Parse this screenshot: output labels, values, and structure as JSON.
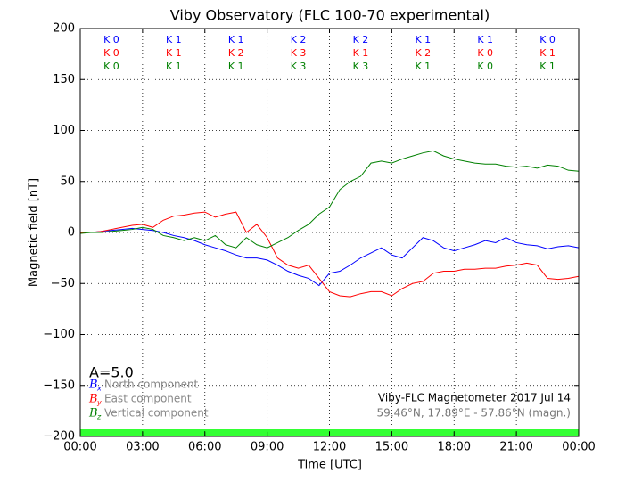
{
  "chart_data": {
    "type": "line",
    "title": "Viby Observatory (FLC 100-70 experimental)",
    "x_label": "Time [UTC]",
    "y_label": "Magnetic field [nT]",
    "x": [
      0,
      0.5,
      1,
      1.5,
      2,
      2.5,
      3,
      3.5,
      4,
      4.5,
      5,
      5.5,
      6,
      6.5,
      7,
      7.5,
      8,
      8.5,
      9,
      9.5,
      10,
      10.5,
      11,
      11.5,
      12,
      12.5,
      13,
      13.5,
      14,
      14.5,
      15,
      15.5,
      16,
      16.5,
      17,
      17.5,
      18,
      18.5,
      19,
      19.5,
      20,
      20.5,
      21,
      21.5,
      22,
      22.5,
      23,
      23.5,
      24
    ],
    "series": [
      {
        "name": "North component",
        "symbol": "B",
        "subscript": "x",
        "color": "#0000ff",
        "values": [
          0,
          0,
          1,
          2,
          3,
          4,
          3,
          2,
          0,
          -3,
          -5,
          -8,
          -12,
          -15,
          -18,
          -22,
          -25,
          -25,
          -27,
          -32,
          -38,
          -42,
          -45,
          -52,
          -40,
          -38,
          -32,
          -25,
          -20,
          -15,
          -22,
          -25,
          -15,
          -5,
          -8,
          -15,
          -18,
          -15,
          -12,
          -8,
          -10,
          -5,
          -10,
          -12,
          -13,
          -16,
          -14,
          -13,
          -15
        ]
      },
      {
        "name": "East component",
        "symbol": "B",
        "subscript": "y",
        "color": "#ff0000",
        "values": [
          0,
          0,
          1,
          3,
          5,
          7,
          8,
          5,
          12,
          16,
          17,
          19,
          20,
          15,
          18,
          20,
          0,
          8,
          -5,
          -25,
          -32,
          -35,
          -32,
          -45,
          -58,
          -62,
          -63,
          -60,
          -58,
          -58,
          -62,
          -55,
          -50,
          -48,
          -40,
          -38,
          -38,
          -36,
          -36,
          -35,
          -35,
          -33,
          -32,
          -30,
          -32,
          -45,
          -46,
          -45,
          -43
        ]
      },
      {
        "name": "Vertical component",
        "symbol": "B",
        "subscript": "z",
        "color": "#008000",
        "values": [
          -1,
          0,
          0,
          1,
          2,
          3,
          5,
          3,
          -3,
          -5,
          -8,
          -5,
          -8,
          -3,
          -12,
          -15,
          -5,
          -12,
          -15,
          -10,
          -5,
          2,
          8,
          18,
          25,
          42,
          50,
          55,
          68,
          70,
          68,
          72,
          75,
          78,
          80,
          75,
          72,
          70,
          68,
          67,
          67,
          65,
          64,
          65,
          63,
          66,
          65,
          61,
          60
        ]
      }
    ],
    "xlim": [
      0,
      24
    ],
    "xticks": [
      {
        "value": 0,
        "label": "00:00"
      },
      {
        "value": 3,
        "label": "03:00"
      },
      {
        "value": 6,
        "label": "06:00"
      },
      {
        "value": 9,
        "label": "09:00"
      },
      {
        "value": 12,
        "label": "12:00"
      },
      {
        "value": 15,
        "label": "15:00"
      },
      {
        "value": 18,
        "label": "18:00"
      },
      {
        "value": 21,
        "label": "21:00"
      },
      {
        "value": 24,
        "label": "00:00"
      }
    ],
    "ylim": [
      -200,
      200
    ],
    "yticks": [
      {
        "value": -200,
        "label": "−200"
      },
      {
        "value": -150,
        "label": "−150"
      },
      {
        "value": -100,
        "label": "−100"
      },
      {
        "value": -50,
        "label": "−50"
      },
      0,
      50,
      100,
      150,
      200
    ],
    "grid": true,
    "k_index_rows": [
      {
        "color": "#0000ff",
        "labels": [
          "K 0",
          "K 1",
          "K 1",
          "K 2",
          "K 2",
          "K 1",
          "K 1",
          "K 0"
        ]
      },
      {
        "color": "#ff0000",
        "labels": [
          "K 0",
          "K 1",
          "K 2",
          "K 3",
          "K 1",
          "K 2",
          "K 0",
          "K 1"
        ]
      },
      {
        "color": "#008000",
        "labels": [
          "K 0",
          "K 1",
          "K 1",
          "K 3",
          "K 3",
          "K 1",
          "K 0",
          "K 1"
        ]
      }
    ],
    "activity_label": "A=5.0",
    "instrument_note": "Viby-FLC Magnetometer 2017 Jul 14",
    "location_note": "59.46°N, 17.89°E - 57.86°N (magn.)",
    "status_bar_color": "#33ff33"
  }
}
